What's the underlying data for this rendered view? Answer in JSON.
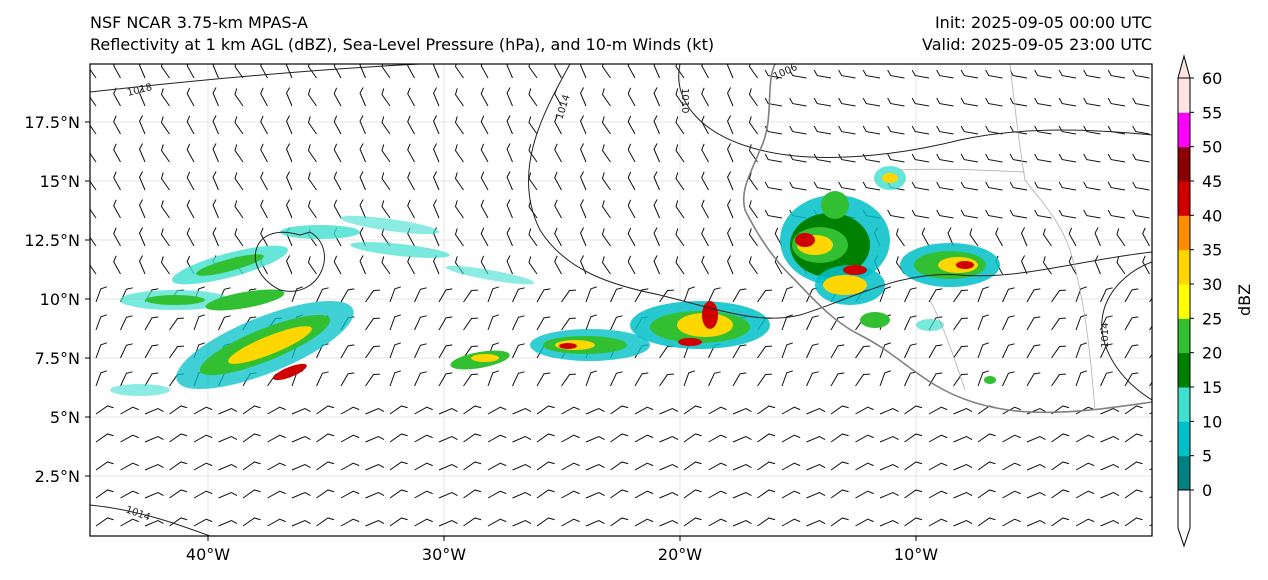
{
  "header": {
    "model_title": "NSF NCAR 3.75-km MPAS-A",
    "field_title": "Reflectivity at 1 km AGL (dBZ), Sea-Level Pressure (hPa), and 10-m Winds (kt)",
    "init_time": "Init: 2025-09-05 00:00 UTC",
    "valid_time": "Valid: 2025-09-05 23:00 UTC"
  },
  "map": {
    "lon_ticks": [
      "40°W",
      "30°W",
      "20°W",
      "10°W"
    ],
    "lat_ticks": [
      "17.5°N",
      "15°N",
      "12.5°N",
      "10°N",
      "7.5°N",
      "5°N",
      "2.5°N"
    ],
    "isobar_labels": [
      "1018",
      "1014",
      "1010",
      "1006",
      "1014",
      "1014"
    ]
  },
  "colorbar": {
    "label": "dBZ",
    "ticks": [
      "0",
      "5",
      "10",
      "15",
      "20",
      "25",
      "30",
      "35",
      "40",
      "45",
      "50",
      "55",
      "60"
    ],
    "colors": [
      "#008080",
      "#00c0c8",
      "#40e0d0",
      "#008000",
      "#32c032",
      "#ffff00",
      "#ffd700",
      "#ff8c00",
      "#d00000",
      "#8b0000",
      "#ff00ff",
      "#ffe4e1"
    ]
  }
}
